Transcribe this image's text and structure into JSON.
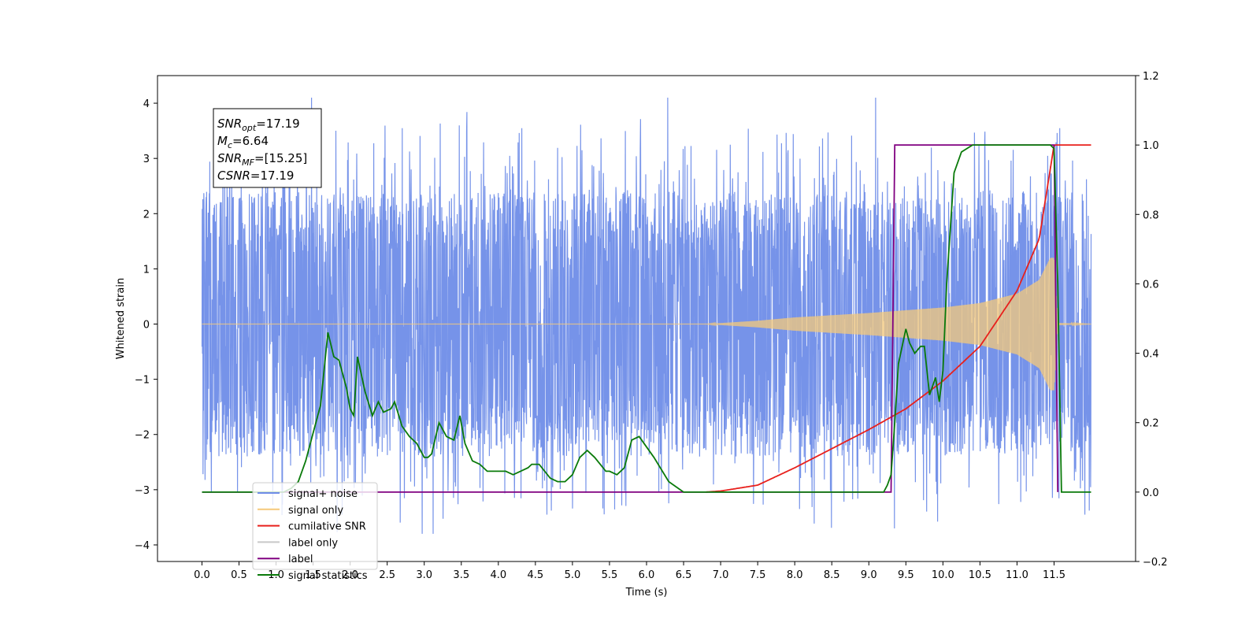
{
  "chart_data": {
    "type": "line",
    "title": "",
    "xlabel": "Time (s)",
    "ylabel": "Whitened strain",
    "xlim": [
      -0.6,
      12.6
    ],
    "ylim": [
      -4.3,
      4.5
    ],
    "ylim_right": [
      -0.2,
      1.2
    ],
    "x_ticks": [
      0.0,
      0.5,
      1.0,
      1.5,
      2.0,
      2.5,
      3.0,
      3.5,
      4.0,
      4.5,
      5.0,
      5.5,
      6.0,
      6.5,
      7.0,
      7.5,
      8.0,
      8.5,
      9.0,
      9.5,
      10.0,
      10.5,
      11.0,
      11.5
    ],
    "x_tick_labels": [
      "0.0",
      "0.5",
      "1.0",
      "1.5",
      "2.0",
      "2.5",
      "3.0",
      "3.5",
      "4.0",
      "4.5",
      "5.0",
      "5.5",
      "6.0",
      "6.5",
      "7.0",
      "7.5",
      "8.0",
      "8.5",
      "9.0",
      "9.5",
      "10.0",
      "10.5",
      "11.0",
      "11.5"
    ],
    "y_ticks": [
      4,
      3,
      2,
      1,
      0,
      -1,
      -2,
      -3,
      -4
    ],
    "y_tick_labels": [
      "4",
      "3",
      "2",
      "1",
      "0",
      "−1",
      "−2",
      "−3",
      "−4"
    ],
    "y_right_ticks": [
      1.2,
      1.0,
      0.8,
      0.6,
      0.4,
      0.2,
      0.0,
      -0.2
    ],
    "y_right_tick_labels": [
      "1.2",
      "1.0",
      "0.8",
      "0.6",
      "0.4",
      "0.2",
      "0.0",
      "−0.2"
    ],
    "grid": false,
    "legend_position": "bottom-left",
    "series": [
      {
        "name": "signal+ noise",
        "axis": "left",
        "color": "#6f8de8",
        "style": "noise",
        "noise_envelope": {
          "base_amplitude": 2.4,
          "extreme_min": -3.8,
          "extreme_max": 4.1
        },
        "x_range": [
          0.0,
          12.0
        ]
      },
      {
        "name": "signal only",
        "axis": "left",
        "color": "#f5c97a",
        "style": "chirp",
        "envelope": {
          "x": [
            0.0,
            6.8,
            7.5,
            8.0,
            9.0,
            10.0,
            10.5,
            11.0,
            11.3,
            11.45,
            11.5,
            11.55,
            12.0
          ],
          "amplitude": [
            0.0,
            0.0,
            0.06,
            0.12,
            0.2,
            0.3,
            0.38,
            0.55,
            0.8,
            1.2,
            1.2,
            0.02,
            0.0
          ]
        },
        "x_range": [
          0.0,
          12.0
        ]
      },
      {
        "name": "cumilative SNR",
        "axis": "right",
        "color": "#e8201c",
        "x": [
          6.8,
          7.0,
          7.5,
          8.0,
          8.5,
          9.0,
          9.5,
          10.0,
          10.5,
          11.0,
          11.3,
          11.5,
          12.0
        ],
        "values": [
          0.0,
          0.003,
          0.02,
          0.07,
          0.125,
          0.18,
          0.24,
          0.32,
          0.42,
          0.58,
          0.73,
          1.0,
          1.0
        ]
      },
      {
        "name": "label only",
        "axis": "right",
        "color": "#c8c8c8",
        "x": [],
        "values": []
      },
      {
        "name": "label",
        "axis": "right",
        "color": "#800080",
        "x": [
          0.0,
          9.3,
          9.35,
          11.5,
          11.55
        ],
        "values": [
          0.0,
          0.0,
          1.0,
          1.0,
          0.0
        ]
      },
      {
        "name": "signal statistics",
        "axis": "right",
        "color": "#0a7a0a",
        "x": [
          0.0,
          1.1,
          1.2,
          1.3,
          1.4,
          1.5,
          1.6,
          1.7,
          1.78,
          1.85,
          1.95,
          2.0,
          2.05,
          2.1,
          2.2,
          2.3,
          2.38,
          2.45,
          2.55,
          2.6,
          2.7,
          2.8,
          2.9,
          3.0,
          3.05,
          3.1,
          3.2,
          3.3,
          3.4,
          3.48,
          3.55,
          3.65,
          3.75,
          3.85,
          4.0,
          4.1,
          4.2,
          4.3,
          4.4,
          4.45,
          4.55,
          4.7,
          4.8,
          4.9,
          5.0,
          5.1,
          5.2,
          5.3,
          5.45,
          5.5,
          5.6,
          5.7,
          5.8,
          5.9,
          6.1,
          6.3,
          6.5,
          6.7,
          7.0,
          8.0,
          8.9,
          9.1,
          9.2,
          9.25,
          9.3,
          9.35,
          9.4,
          9.5,
          9.55,
          9.62,
          9.7,
          9.75,
          9.82,
          9.9,
          9.95,
          10.0,
          10.05,
          10.15,
          10.25,
          10.4,
          11.4,
          11.45,
          11.5,
          11.55,
          11.6,
          12.0
        ],
        "values": [
          0.0,
          0.0,
          0.01,
          0.03,
          0.09,
          0.17,
          0.25,
          0.46,
          0.39,
          0.38,
          0.3,
          0.24,
          0.22,
          0.39,
          0.29,
          0.22,
          0.26,
          0.23,
          0.24,
          0.26,
          0.19,
          0.16,
          0.14,
          0.1,
          0.1,
          0.11,
          0.2,
          0.16,
          0.15,
          0.22,
          0.14,
          0.09,
          0.08,
          0.06,
          0.06,
          0.06,
          0.05,
          0.06,
          0.07,
          0.08,
          0.08,
          0.04,
          0.03,
          0.03,
          0.05,
          0.1,
          0.12,
          0.1,
          0.06,
          0.06,
          0.05,
          0.07,
          0.15,
          0.16,
          0.1,
          0.03,
          0.0,
          0.0,
          0.0,
          0.0,
          0.0,
          0.0,
          0.0,
          0.02,
          0.05,
          0.2,
          0.37,
          0.47,
          0.43,
          0.4,
          0.42,
          0.42,
          0.28,
          0.33,
          0.26,
          0.35,
          0.6,
          0.92,
          0.98,
          1.0,
          1.0,
          1.0,
          0.99,
          0.6,
          0.0,
          0.0
        ]
      }
    ],
    "annotation": {
      "lines": [
        {
          "base": "SNR",
          "sub": "opt",
          "value": "=17.19"
        },
        {
          "base": "M",
          "sub": "c",
          "value": "=6.64"
        },
        {
          "base": "SNR",
          "sub": "MF",
          "value": "=[15.25]"
        },
        {
          "base": "CSNR",
          "sub": "",
          "value": "=17.19"
        }
      ]
    }
  }
}
